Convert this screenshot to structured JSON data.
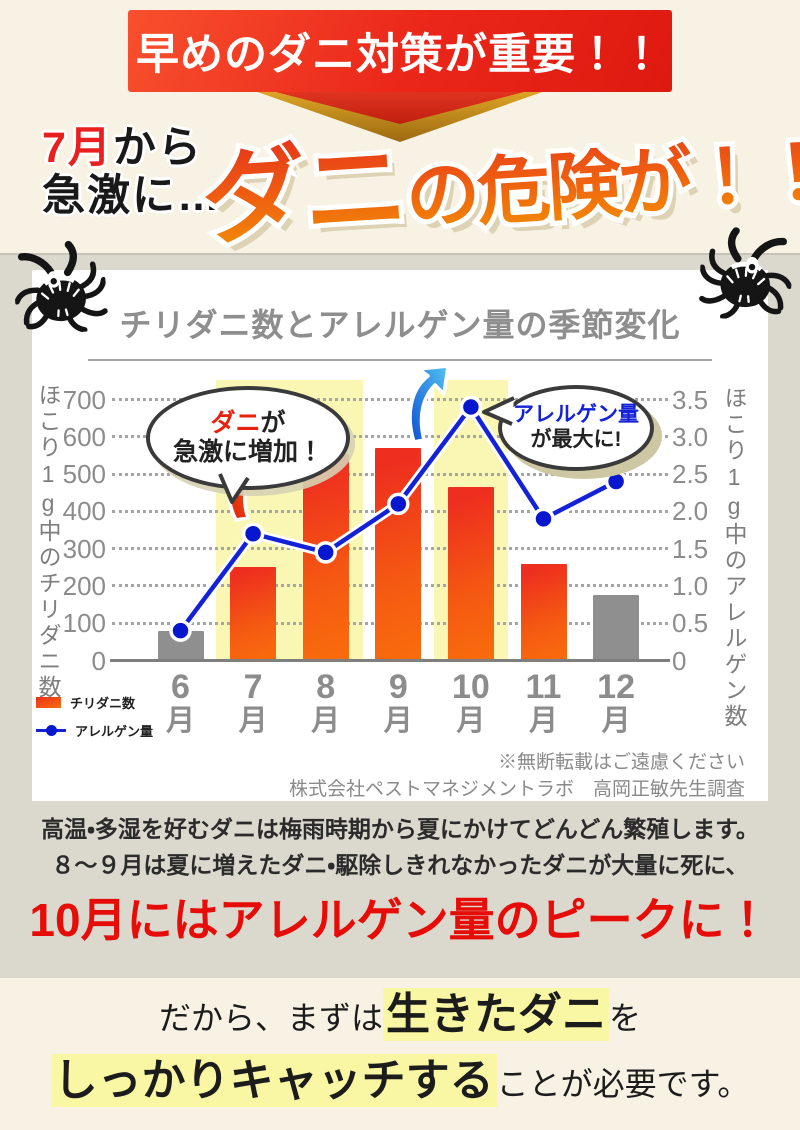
{
  "strings": {
    "banner": "早めのダニ対策が重要！！",
    "lead": {
      "em": "7月",
      "rest": "から",
      "line2": "急激に…"
    },
    "headline": {
      "em": "ダニ",
      "rest": "の危険が！！"
    }
  },
  "chart": {
    "callout_mite": {
      "em": "ダニ",
      "rest": "が",
      "line2": "急激に増加！"
    },
    "callout_allergen": {
      "line1": "アレルゲン量",
      "line2": "が最大に!"
    },
    "attribution": [
      "※無断転載はご遠慮ください",
      "株式会社ペストマネジメントラボ　高岡正敏先生調査"
    ]
  },
  "chart_data": {
    "type": "bar+line combo",
    "title": "チリダニ数とアレルゲン量の季節変化",
    "categories": [
      "6月",
      "7月",
      "8月",
      "9月",
      "10月",
      "11月",
      "12月"
    ],
    "series": [
      {
        "name": "チリダニ数",
        "type": "bar",
        "axis": "left",
        "values": [
          80,
          250,
          555,
          570,
          465,
          260,
          175
        ],
        "gray_categories": [
          "6月",
          "12月"
        ],
        "bar_color": "#f04316",
        "gray_color": "#8f8f8f"
      },
      {
        "name": "アレルゲン量",
        "type": "line",
        "axis": "right",
        "values": [
          0.4,
          1.7,
          1.45,
          2.1,
          3.4,
          1.9,
          2.4
        ],
        "line_color": "#1322d6"
      }
    ],
    "left_axis": {
      "label": "ほこり1g中のチリダニ数",
      "range": [
        0,
        700
      ],
      "tick_labels": [
        "0",
        "100",
        "200",
        "300",
        "400",
        "500",
        "600",
        "700"
      ]
    },
    "right_axis": {
      "label": "ほこり1g中のアレルゲン数",
      "range": [
        0,
        3.5
      ],
      "tick_labels": [
        "0",
        "0.5",
        "1.0",
        "1.5",
        "2.0",
        "2.5",
        "3.0",
        "3.5"
      ]
    },
    "highlight_bands": [
      {
        "from": "7月",
        "to": "8月"
      },
      {
        "from": "10月",
        "to": "10月"
      }
    ],
    "highlight_color": "#faf7b5",
    "grid": "dotted horizontal",
    "legend_position": "bottom-left"
  },
  "body": {
    "para": [
      "高温・多湿を好むダニは梅雨時期から夏にかけてどんどん繁殖します。",
      "８〜９月は夏に増えたダニ・駆除しきれなかったダニが大量に死に、"
    ],
    "peak": "10月にはアレルゲン量のピークに！",
    "closing": {
      "pre": "だから、まずは",
      "hl1": "生きたダニ",
      "mid": "を",
      "hl2": "しっかりキャッチする",
      "post": "ことが必要です。"
    }
  }
}
